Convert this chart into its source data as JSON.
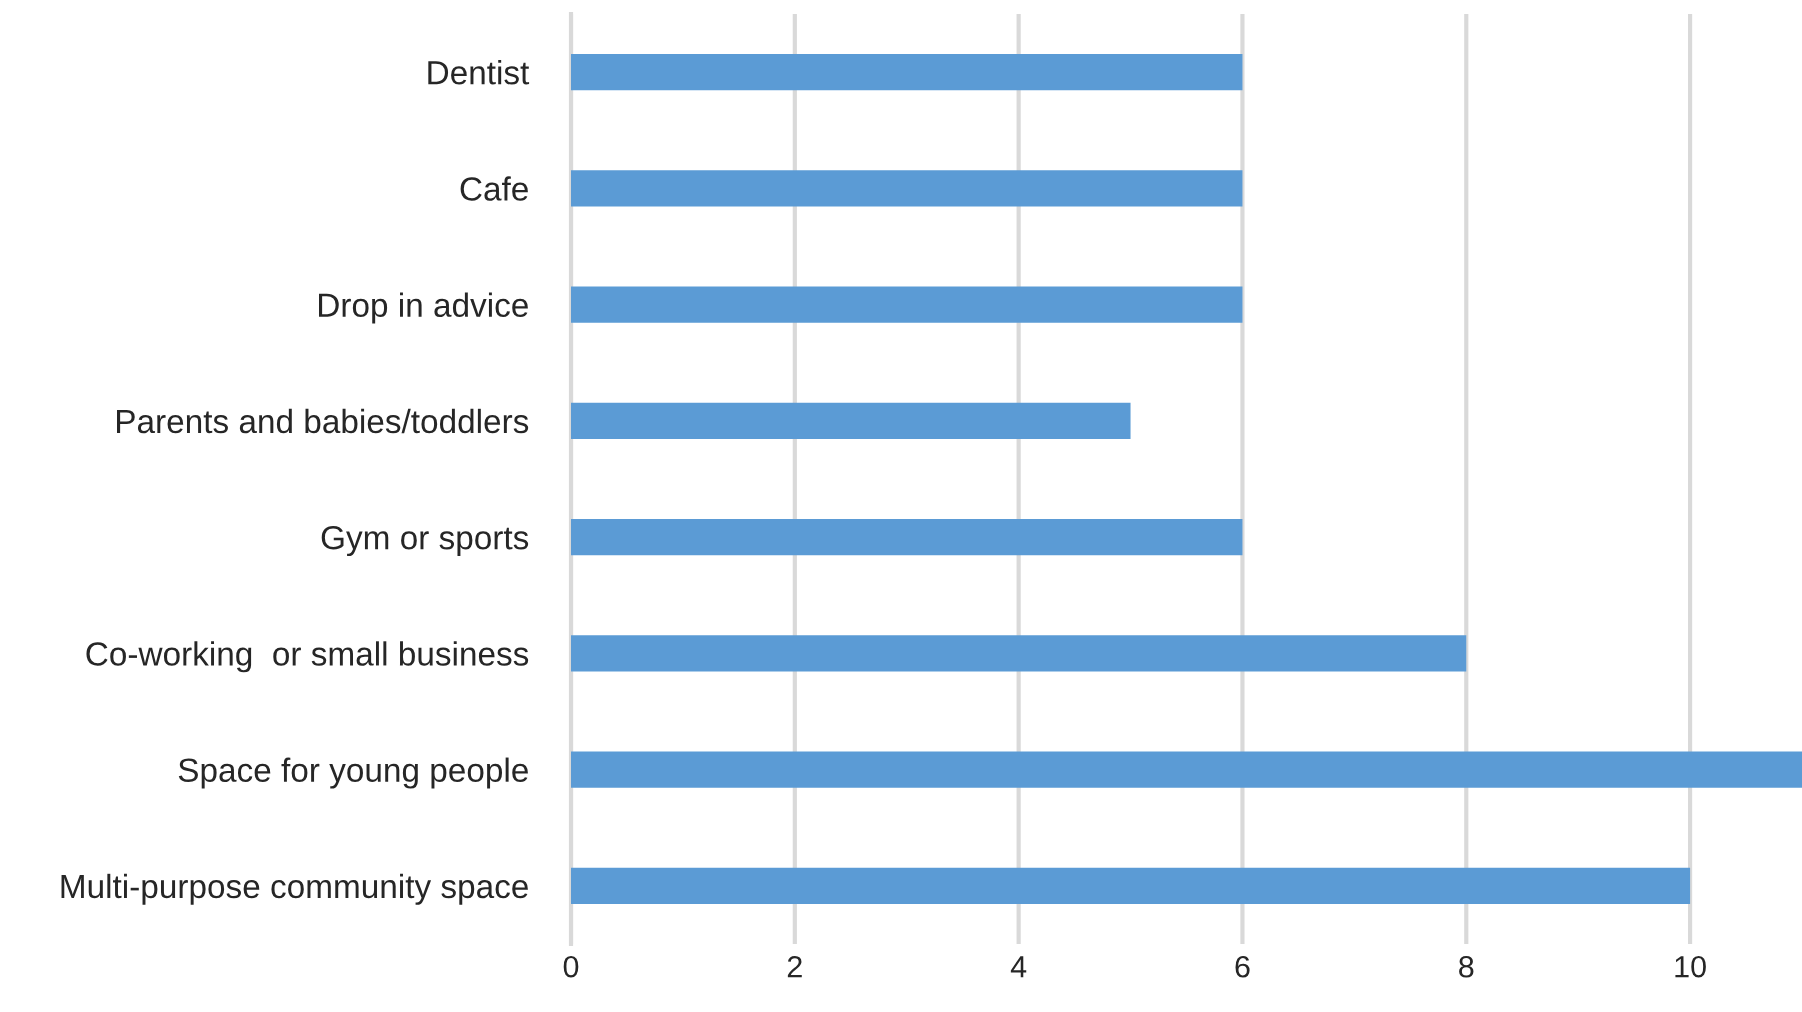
{
  "chart_data": {
    "type": "bar",
    "orientation": "horizontal",
    "categories": [
      "Dentist",
      "Cafe",
      "Drop in advice",
      "Parents and babies/toddlers",
      "Gym or sports",
      "Co-working  or small business",
      "Space for young people",
      "Multi-purpose community space"
    ],
    "values": [
      6,
      6,
      6,
      5,
      6,
      8,
      11,
      10
    ],
    "color": "#5b9bd5",
    "xlim": [
      0,
      11
    ],
    "xticks": [
      0,
      2,
      4,
      6,
      8,
      10
    ],
    "grid": "x"
  }
}
